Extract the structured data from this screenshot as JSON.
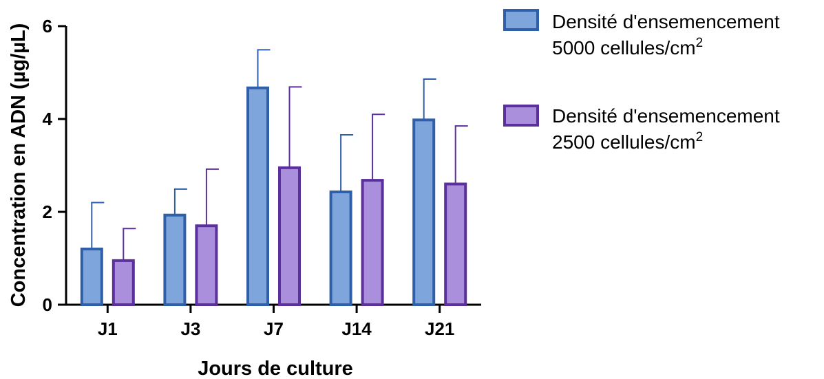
{
  "chart_data": {
    "type": "bar",
    "categories": [
      "J1",
      "J3",
      "J7",
      "J14",
      "J21"
    ],
    "xlabel": "Jours de culture",
    "ylabel": "Concentration en ADN (µg/µL)",
    "ylim": [
      0,
      6
    ],
    "yticks": [
      "0",
      "2",
      "4",
      "6"
    ],
    "grid": false,
    "legend_position": "right",
    "series": [
      {
        "name_line1": "Densité d'ensemencement",
        "name_line2": "5000 cellules/cm",
        "name_sup": "2",
        "values": [
          1.2,
          1.93,
          4.67,
          2.43,
          3.98
        ],
        "errors": [
          1.0,
          0.56,
          0.82,
          1.23,
          0.88
        ],
        "fill": "#7ea6dc",
        "stroke": "#2f5fa8"
      },
      {
        "name_line1": "Densité d'ensemencement",
        "name_line2": "2500 cellules/cm",
        "name_sup": "2",
        "values": [
          0.95,
          1.7,
          2.95,
          2.68,
          2.6
        ],
        "errors": [
          0.69,
          1.22,
          1.74,
          1.42,
          1.25
        ],
        "fill": "#a98fdc",
        "stroke": "#5b2f9c"
      }
    ]
  }
}
